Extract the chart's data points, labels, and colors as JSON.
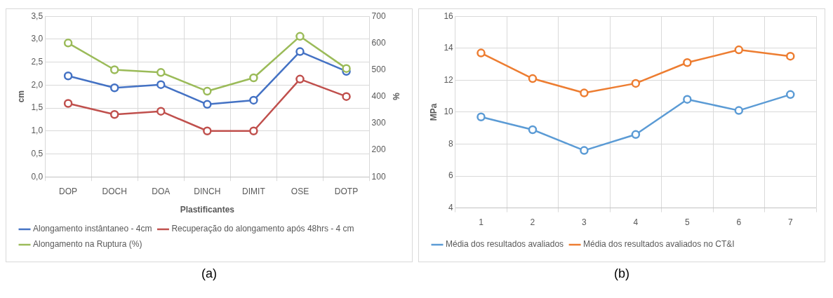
{
  "chart_data": [
    {
      "type": "line",
      "xlabel": "Plastificantes",
      "ylabel": "cm",
      "y2label": "%",
      "categories": [
        "DOP",
        "DOCH",
        "DOA",
        "DINCH",
        "DIMIT",
        "OSE",
        "DOTP"
      ],
      "series": [
        {
          "name": "Alongamento instântaneo - 4cm",
          "color": "#4472c4",
          "values": [
            2.2,
            1.94,
            2.01,
            1.58,
            1.67,
            2.73,
            2.3
          ]
        },
        {
          "name": "Recuperação do alongamento após 48hrs - 4 cm",
          "color": "#c0504d",
          "values": [
            1.6,
            1.36,
            1.43,
            1.0,
            1.0,
            2.13,
            1.75
          ]
        },
        {
          "name": "Alongamento na Ruptura (%)",
          "color": "#9bbb59",
          "axis": "y2",
          "values": [
            600,
            500,
            490,
            420,
            470,
            625,
            505
          ]
        }
      ],
      "ylim": [
        0,
        3.5
      ],
      "yticks": [
        {
          "value": 0,
          "label": "0,0"
        },
        {
          "value": 0.5,
          "label": "0,5"
        },
        {
          "value": 1,
          "label": "1,0"
        },
        {
          "value": 1.5,
          "label": "1,5"
        },
        {
          "value": 2,
          "label": "2,0"
        },
        {
          "value": 2.5,
          "label": "2,5"
        },
        {
          "value": 3,
          "label": "3,0"
        },
        {
          "value": 3.5,
          "label": "3,5"
        }
      ],
      "y2lim": [
        100,
        700
      ],
      "y2ticks": [
        100,
        200,
        300,
        400,
        500,
        600,
        700
      ],
      "grid": true,
      "legend": "bottom",
      "marker": "circle",
      "line_style": "solid",
      "annotations": [
        "(a)"
      ]
    },
    {
      "type": "line",
      "ylabel": "MPa",
      "categories": [
        "1",
        "2",
        "3",
        "4",
        "5",
        "6",
        "7"
      ],
      "series": [
        {
          "name": "Média dos resultados avaliados",
          "color": "#5b9bd5",
          "values": [
            9.7,
            8.9,
            7.6,
            8.6,
            10.8,
            10.1,
            11.1
          ]
        },
        {
          "name": "Média dos resultados avaliados no CT&I",
          "color": "#ed7d31",
          "values": [
            13.7,
            12.1,
            11.2,
            11.8,
            13.1,
            13.9,
            13.5
          ]
        }
      ],
      "ylim": [
        4,
        16
      ],
      "yticks": [
        4,
        6,
        8,
        10,
        12,
        14,
        16
      ],
      "grid": true,
      "legend": "bottom",
      "marker": "circle",
      "line_style": "solid",
      "annotations": [
        "(b)"
      ]
    }
  ]
}
